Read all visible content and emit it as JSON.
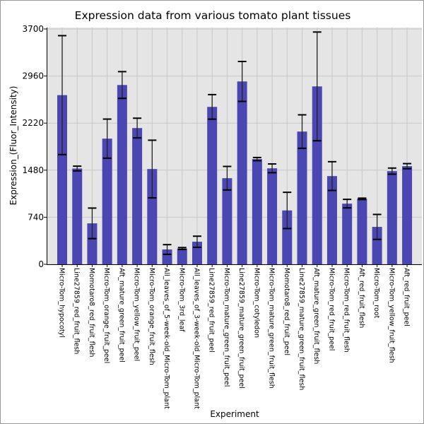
{
  "chart_data": {
    "type": "bar",
    "title": "Expression data from various tomato plant tissues",
    "xlabel": "Experiment",
    "ylabel": "Expression_(Fluor_Intensity)",
    "ylim": [
      0,
      3700
    ],
    "yticks": [
      0,
      740,
      1480,
      2220,
      2960,
      3700
    ],
    "grid": true,
    "bar_color": "#4b47b2",
    "categories": [
      "Micro-Tom_hypocotyl",
      "Line27859_red_fruit_flesh",
      "Momotaro8_red_fruit_flesh",
      "Micro-Tom_orange_fruit_peel",
      "Aft_mature_green_fruit_peel",
      "Micro-Tom_yellow_fruit_peel",
      "Micro-Tom_orange_fruit_flesh",
      "All_leaves_of_5-week-old_Micro-Tom_plant",
      "Micro-Tom_3rd_leaf",
      "All_leaves_of_3-week-old_Micro-Tom_plant",
      "Line27859_red_fruit_peel",
      "Micro-Tom_mature_green_fruit_peel",
      "Line27859_mature_green_fruit_peel",
      "Micro-Tom_cotyledon",
      "Micro-Tom_mature_green_fruit_flesh",
      "Momotaro8_red_fruit_peel",
      "Line27859_mature_green_fruit_flesh",
      "Aft_mature_green_fruit_flesh",
      "Micro-Tom_red_fruit_peel",
      "Micro-Tom_red_fruit_flesh",
      "Aft_red_fruit_flesh",
      "Micro-Tom_root",
      "Micro-Tom_yellow_fruit_flesh",
      "Aft_red_fruit_peel"
    ],
    "values": [
      2660,
      1506,
      644,
      1976,
      2819,
      2142,
      1498,
      233,
      248,
      355,
      2475,
      1354,
      2875,
      1654,
      1509,
      847,
      2087,
      2797,
      1387,
      954,
      1029,
      588,
      1465,
      1543
    ],
    "errors": [
      935,
      37,
      240,
      307,
      210,
      155,
      453,
      76,
      15,
      87,
      193,
      185,
      314,
      25,
      69,
      285,
      263,
      855,
      226,
      67,
      11,
      196,
      48,
      40
    ]
  }
}
